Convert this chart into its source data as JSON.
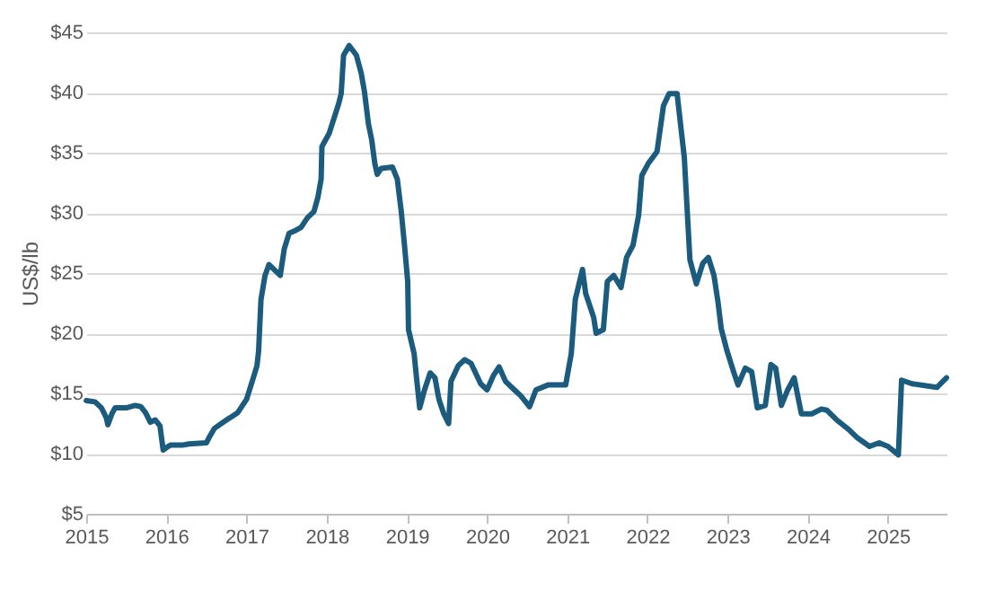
{
  "chart_data": {
    "type": "line",
    "ylabel": "US$/lb",
    "x": [
      2015.0,
      2015.11,
      2015.19,
      2015.25,
      2015.27,
      2015.32,
      2015.36,
      2015.5,
      2015.61,
      2015.68,
      2015.74,
      2015.8,
      2015.86,
      2015.92,
      2015.96,
      2016.0,
      2016.05,
      2016.2,
      2016.28,
      2016.5,
      2016.53,
      2016.6,
      2016.73,
      2016.89,
      2017.0,
      2017.08,
      2017.13,
      2017.15,
      2017.18,
      2017.23,
      2017.28,
      2017.42,
      2017.47,
      2017.53,
      2017.6,
      2017.68,
      2017.76,
      2017.84,
      2017.89,
      2017.93,
      2017.94,
      2018.03,
      2018.15,
      2018.18,
      2018.21,
      2018.28,
      2018.37,
      2018.43,
      2018.47,
      2018.52,
      2018.56,
      2018.6,
      2018.63,
      2018.68,
      2018.82,
      2018.88,
      2018.93,
      2018.97,
      2019.01,
      2019.02,
      2019.09,
      2019.12,
      2019.16,
      2019.22,
      2019.29,
      2019.35,
      2019.4,
      2019.46,
      2019.52,
      2019.55,
      2019.64,
      2019.72,
      2019.8,
      2019.92,
      2020.0,
      2020.08,
      2020.15,
      2020.23,
      2020.34,
      2020.42,
      2020.53,
      2020.61,
      2020.76,
      2020.98,
      2021.05,
      2021.1,
      2021.19,
      2021.23,
      2021.33,
      2021.36,
      2021.45,
      2021.5,
      2021.58,
      2021.67,
      2021.74,
      2021.82,
      2021.89,
      2021.93,
      2022.01,
      2022.12,
      2022.2,
      2022.27,
      2022.37,
      2022.46,
      2022.53,
      2022.61,
      2022.69,
      2022.76,
      2022.83,
      2022.88,
      2022.92,
      2022.99,
      2023.07,
      2023.13,
      2023.22,
      2023.3,
      2023.37,
      2023.47,
      2023.54,
      2023.6,
      2023.67,
      2023.75,
      2023.83,
      2023.92,
      2024.05,
      2024.17,
      2024.24,
      2024.36,
      2024.51,
      2024.62,
      2024.77,
      2024.89,
      2025.0,
      2025.13,
      2025.17,
      2025.3,
      2025.61,
      2025.73
    ],
    "series": [
      {
        "color": "#1a5b7e",
        "values": [
          14.4,
          14.3,
          13.8,
          13.0,
          12.4,
          13.3,
          13.8,
          13.8,
          14.0,
          13.9,
          13.4,
          12.6,
          12.8,
          12.3,
          10.3,
          10.5,
          10.7,
          10.7,
          10.8,
          10.9,
          11.3,
          12.1,
          12.7,
          13.4,
          14.5,
          16.2,
          17.3,
          18.5,
          22.8,
          24.8,
          25.7,
          24.8,
          27.0,
          28.3,
          28.5,
          28.8,
          29.6,
          30.1,
          31.3,
          32.8,
          35.5,
          36.6,
          39.1,
          39.9,
          43.1,
          43.9,
          43.1,
          41.6,
          40.1,
          37.4,
          36.1,
          34.1,
          33.2,
          33.7,
          33.8,
          32.8,
          30.1,
          27.3,
          24.3,
          20.3,
          18.3,
          16.3,
          13.8,
          15.3,
          16.7,
          16.3,
          14.5,
          13.3,
          12.5,
          16.0,
          17.3,
          17.8,
          17.5,
          15.8,
          15.3,
          16.5,
          17.2,
          16.0,
          15.3,
          14.8,
          13.9,
          15.3,
          15.7,
          15.7,
          18.3,
          22.8,
          25.3,
          23.3,
          21.3,
          20.0,
          20.3,
          24.3,
          24.8,
          23.8,
          26.3,
          27.3,
          29.8,
          33.1,
          34.1,
          35.1,
          38.9,
          39.9,
          39.9,
          34.6,
          26.1,
          24.1,
          25.8,
          26.3,
          24.8,
          22.6,
          20.4,
          18.6,
          16.9,
          15.7,
          17.1,
          16.8,
          13.8,
          14.0,
          17.4,
          17.1,
          14.0,
          15.3,
          16.3,
          13.3,
          13.3,
          13.7,
          13.6,
          12.8,
          12.0,
          11.3,
          10.6,
          10.9,
          10.6,
          9.9,
          16.1,
          15.8,
          15.5,
          16.3
        ]
      }
    ],
    "xlim": [
      2015,
      2025.73
    ],
    "xticks": [
      2015,
      2016,
      2017,
      2018,
      2019,
      2020,
      2021,
      2022,
      2023,
      2024,
      2025
    ],
    "ylim": [
      5,
      45
    ],
    "yticks": [
      {
        "value": 5,
        "label": "$5"
      },
      {
        "value": 10,
        "label": "$10"
      },
      {
        "value": 15,
        "label": "$15"
      },
      {
        "value": 20,
        "label": "$20"
      },
      {
        "value": 25,
        "label": "$25"
      },
      {
        "value": 30,
        "label": "$30"
      },
      {
        "value": 35,
        "label": "$35"
      },
      {
        "value": 40,
        "label": "$40"
      },
      {
        "value": 45,
        "label": "$45"
      }
    ],
    "grid": "y",
    "marker": "none",
    "line_style": "solid"
  }
}
